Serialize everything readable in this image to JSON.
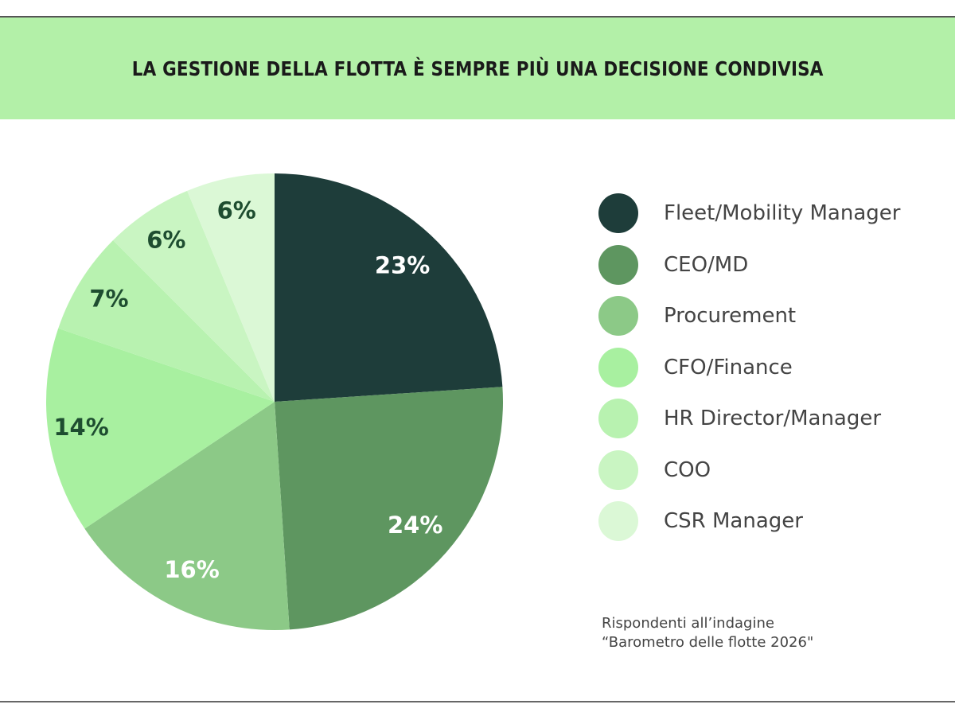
{
  "title": "LA GESTIONE DELLA FLOTTA È SEMPRE PIÙ UNA DECISIONE CONDIVISA",
  "header_color": "#b3f0a8",
  "chart_data": {
    "type": "pie",
    "title": "LA GESTIONE DELLA FLOTTA È SEMPRE PIÙ UNA DECISIONE CONDIVISA",
    "legend_position": "right",
    "start": "top, clockwise",
    "slices": [
      {
        "label": "Fleet/Mobility Manager",
        "value": 23,
        "display": "23%",
        "color": "#1e3d3a",
        "text_color": "#ffffff"
      },
      {
        "label": "CEO/MD",
        "value": 24,
        "display": "24%",
        "color": "#5e9660",
        "text_color": "#ffffff"
      },
      {
        "label": "Procurement",
        "value": 16,
        "display": "16%",
        "color": "#8cc987",
        "text_color": "#ffffff"
      },
      {
        "label": "CFO/Finance",
        "value": 14,
        "display": "14%",
        "color": "#a8f0a0",
        "text_color": "#1e4d30"
      },
      {
        "label": "HR Director/Manager",
        "value": 7,
        "display": "7%",
        "color": "#b8f2b0",
        "text_color": "#1e4d30"
      },
      {
        "label": "COO",
        "value": 6,
        "display": "6%",
        "color": "#c9f5c2",
        "text_color": "#1e4d30"
      },
      {
        "label": "CSR Manager",
        "value": 6,
        "display": "6%",
        "color": "#dbf8d6",
        "text_color": "#1e4d30"
      }
    ]
  },
  "note": {
    "line1": "Rispondenti all’indagine",
    "line2": "“Barometro delle flotte 2026\""
  }
}
